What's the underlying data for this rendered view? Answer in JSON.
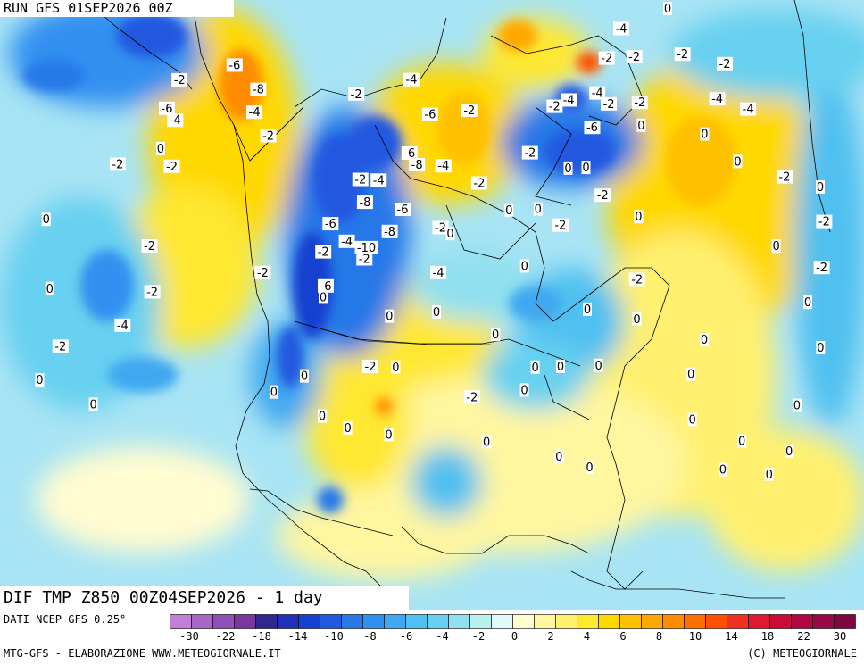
{
  "header": {
    "run_title": "RUN GFS 01SEP2026 00Z",
    "main_title": "DIF TMP Z850 00Z04SEP2026 - 1 day"
  },
  "footer": {
    "data_source": "DATI NCEP GFS 0.25°",
    "credit": "MTG-GFS - ELABORAZIONE WWW.METEOGIORNALE.IT",
    "copyright": "(C) METEOGIORNALE"
  },
  "legend": {
    "colors": [
      "#c080d8",
      "#a868c8",
      "#9050b8",
      "#7838a0",
      "#302890",
      "#2030b8",
      "#1840d0",
      "#2058e0",
      "#2878e8",
      "#3090f0",
      "#40a8f0",
      "#50c0f0",
      "#68d0f0",
      "#90e0f0",
      "#b8f0f0",
      "#e0fafa",
      "#fffcd0",
      "#fff6a0",
      "#fff070",
      "#ffe830",
      "#ffd800",
      "#ffc000",
      "#ffa800",
      "#ff8c00",
      "#ff7000",
      "#ff5000",
      "#f03020",
      "#e01830",
      "#c80c38",
      "#b00840",
      "#980848",
      "#800840"
    ],
    "labels": [
      "-30",
      "-22",
      "-18",
      "-14",
      "-10",
      "-8",
      "-6",
      "-4",
      "-2",
      "0",
      "2",
      "4",
      "6",
      "8",
      "10",
      "14",
      "18",
      "22",
      "30"
    ]
  },
  "map": {
    "palette": {
      "ocean_base": "#a8e4f4",
      "land_base": "#fff9b0"
    },
    "contour_labels": [
      {
        "text": "-2",
        "lon": -172,
        "lat": 69
      },
      {
        "text": "-6",
        "lon": -160,
        "lat": 72
      },
      {
        "text": "-6",
        "lon": -170,
        "lat": 64
      },
      {
        "text": "-4",
        "lon": -166,
        "lat": 62
      },
      {
        "text": "-8",
        "lon": -150,
        "lat": 68
      },
      {
        "text": "-4",
        "lon": -148,
        "lat": 64
      },
      {
        "text": "0",
        "lon": -165,
        "lat": 57
      },
      {
        "text": "-2",
        "lon": -142,
        "lat": 60
      },
      {
        "text": "-2",
        "lon": -172,
        "lat": 54
      },
      {
        "text": "-2",
        "lon": -160,
        "lat": 54
      },
      {
        "text": "0",
        "lon": -178,
        "lat": 44
      },
      {
        "text": "-2",
        "lon": -155,
        "lat": 40
      },
      {
        "text": "-2",
        "lon": -150,
        "lat": 32
      },
      {
        "text": "0",
        "lon": -168,
        "lat": 32
      },
      {
        "text": "-4",
        "lon": -152,
        "lat": 26
      },
      {
        "text": "-2",
        "lon": -160,
        "lat": 22
      },
      {
        "text": "0",
        "lon": -160,
        "lat": 16
      },
      {
        "text": "0",
        "lon": -170,
        "lat": 12
      },
      {
        "text": "0",
        "lon": -150,
        "lat": 12
      },
      {
        "text": "0",
        "lon": -172,
        "lat": 4
      },
      {
        "text": "0",
        "lon": -160,
        "lat": 2
      },
      {
        "text": "-2",
        "lon": -124,
        "lat": 68
      },
      {
        "text": "-4",
        "lon": -110,
        "lat": 71
      },
      {
        "text": "-6",
        "lon": -104,
        "lat": 65
      },
      {
        "text": "-2",
        "lon": -94,
        "lat": 66
      },
      {
        "text": "-6",
        "lon": -108,
        "lat": 58
      },
      {
        "text": "-8",
        "lon": -106,
        "lat": 56
      },
      {
        "text": "-4",
        "lon": -100,
        "lat": 56
      },
      {
        "text": "-2",
        "lon": -118,
        "lat": 53
      },
      {
        "text": "-4",
        "lon": -114,
        "lat": 53
      },
      {
        "text": "-2",
        "lon": -92,
        "lat": 53
      },
      {
        "text": "-8",
        "lon": -116,
        "lat": 49
      },
      {
        "text": "-6",
        "lon": -108,
        "lat": 48
      },
      {
        "text": "-6",
        "lon": -122,
        "lat": 45
      },
      {
        "text": "-8",
        "lon": -110,
        "lat": 44
      },
      {
        "text": "-4",
        "lon": -118,
        "lat": 42
      },
      {
        "text": "-10",
        "lon": -114,
        "lat": 41
      },
      {
        "text": "-2",
        "lon": -122,
        "lat": 40
      },
      {
        "text": "-2",
        "lon": -114,
        "lat": 39
      },
      {
        "text": "-2",
        "lon": -132,
        "lat": 36
      },
      {
        "text": "-6",
        "lon": -120,
        "lat": 34
      },
      {
        "text": "0",
        "lon": -120,
        "lat": 32
      },
      {
        "text": "-2",
        "lon": -100,
        "lat": 45
      },
      {
        "text": "0",
        "lon": -98,
        "lat": 44
      },
      {
        "text": "-4",
        "lon": -100,
        "lat": 37
      },
      {
        "text": "0",
        "lon": -108,
        "lat": 29
      },
      {
        "text": "0",
        "lon": -100,
        "lat": 30
      },
      {
        "text": "0",
        "lon": -90,
        "lat": 26
      },
      {
        "text": "0",
        "lon": -86,
        "lat": 48
      },
      {
        "text": "0",
        "lon": -80,
        "lat": 48
      },
      {
        "text": "-2",
        "lon": -110,
        "lat": 20
      },
      {
        "text": "0",
        "lon": -106,
        "lat": 20
      },
      {
        "text": "0",
        "lon": -120,
        "lat": 18
      },
      {
        "text": "0",
        "lon": -124,
        "lat": 15
      },
      {
        "text": "0",
        "lon": -116,
        "lat": 11
      },
      {
        "text": "0",
        "lon": -112,
        "lat": 9
      },
      {
        "text": "0",
        "lon": -106,
        "lat": 8
      },
      {
        "text": "-2",
        "lon": -94,
        "lat": 15
      },
      {
        "text": "0",
        "lon": -84,
        "lat": 20
      },
      {
        "text": "0",
        "lon": -80,
        "lat": 20
      },
      {
        "text": "0",
        "lon": -74,
        "lat": 20
      },
      {
        "text": "0",
        "lon": -86,
        "lat": 16
      },
      {
        "text": "0",
        "lon": -92,
        "lat": 7
      },
      {
        "text": "0",
        "lon": -82,
        "lat": 4
      },
      {
        "text": "0",
        "lon": -78,
        "lat": 2
      },
      {
        "text": "-2",
        "lon": -80,
        "lat": 58
      },
      {
        "text": "0",
        "lon": -72,
        "lat": 55
      },
      {
        "text": "0",
        "lon": -68,
        "lat": 55
      },
      {
        "text": "-2",
        "lon": -66,
        "lat": 50
      },
      {
        "text": "-2",
        "lon": -76,
        "lat": 45
      },
      {
        "text": "0",
        "lon": -60,
        "lat": 46
      },
      {
        "text": "-2",
        "lon": -64,
        "lat": 35
      },
      {
        "text": "0",
        "lon": -84,
        "lat": 38
      },
      {
        "text": "0",
        "lon": -74,
        "lat": 30
      },
      {
        "text": "0",
        "lon": -66,
        "lat": 28
      },
      {
        "text": "0",
        "lon": -56,
        "lat": 24
      },
      {
        "text": "0",
        "lon": -60,
        "lat": 18
      },
      {
        "text": "0",
        "lon": -62,
        "lat": 10
      },
      {
        "text": "0",
        "lon": -56,
        "lat": 6
      },
      {
        "text": "0",
        "lon": -60,
        "lat": 1
      },
      {
        "text": "-2",
        "lon": -72,
        "lat": 66
      },
      {
        "text": "-6",
        "lon": -64,
        "lat": 62
      },
      {
        "text": "-4",
        "lon": -68,
        "lat": 67
      },
      {
        "text": "-4",
        "lon": -60,
        "lat": 68
      },
      {
        "text": "-2",
        "lon": -58,
        "lat": 66
      },
      {
        "text": "-2",
        "lon": -50,
        "lat": 66
      },
      {
        "text": "0",
        "lon": -52,
        "lat": 62
      },
      {
        "text": "-2",
        "lon": -54,
        "lat": 74
      },
      {
        "text": "-4",
        "lon": -46,
        "lat": 79
      },
      {
        "text": "-2",
        "lon": -46,
        "lat": 74
      },
      {
        "text": "0",
        "lon": -28,
        "lat": 82
      },
      {
        "text": "-2",
        "lon": -32,
        "lat": 74
      },
      {
        "text": "-2",
        "lon": -22,
        "lat": 72
      },
      {
        "text": "-4",
        "lon": -30,
        "lat": 66
      },
      {
        "text": "-4",
        "lon": -24,
        "lat": 64
      },
      {
        "text": "0",
        "lon": -38,
        "lat": 60
      },
      {
        "text": "0",
        "lon": -34,
        "lat": 55
      },
      {
        "text": "-2",
        "lon": -26,
        "lat": 52
      },
      {
        "text": "0",
        "lon": -20,
        "lat": 50
      },
      {
        "text": "-2",
        "lon": -24,
        "lat": 44
      },
      {
        "text": "0",
        "lon": -36,
        "lat": 40
      },
      {
        "text": "-2",
        "lon": -30,
        "lat": 36
      },
      {
        "text": "0",
        "lon": -36,
        "lat": 30
      },
      {
        "text": "0",
        "lon": -38,
        "lat": 22
      },
      {
        "text": "0",
        "lon": -24,
        "lat": 26
      },
      {
        "text": "0",
        "lon": -30,
        "lat": 16
      },
      {
        "text": "0",
        "lon": -28,
        "lat": 10
      },
      {
        "text": "0",
        "lon": -32,
        "lat": 4
      },
      {
        "text": "0",
        "lon": -46,
        "lat": 12
      },
      {
        "text": "0",
        "lon": -50,
        "lat": 4
      },
      {
        "text": "0",
        "lon": -54,
        "lat": 0
      },
      {
        "text": "0",
        "lon": -22,
        "lat": 4
      }
    ]
  }
}
